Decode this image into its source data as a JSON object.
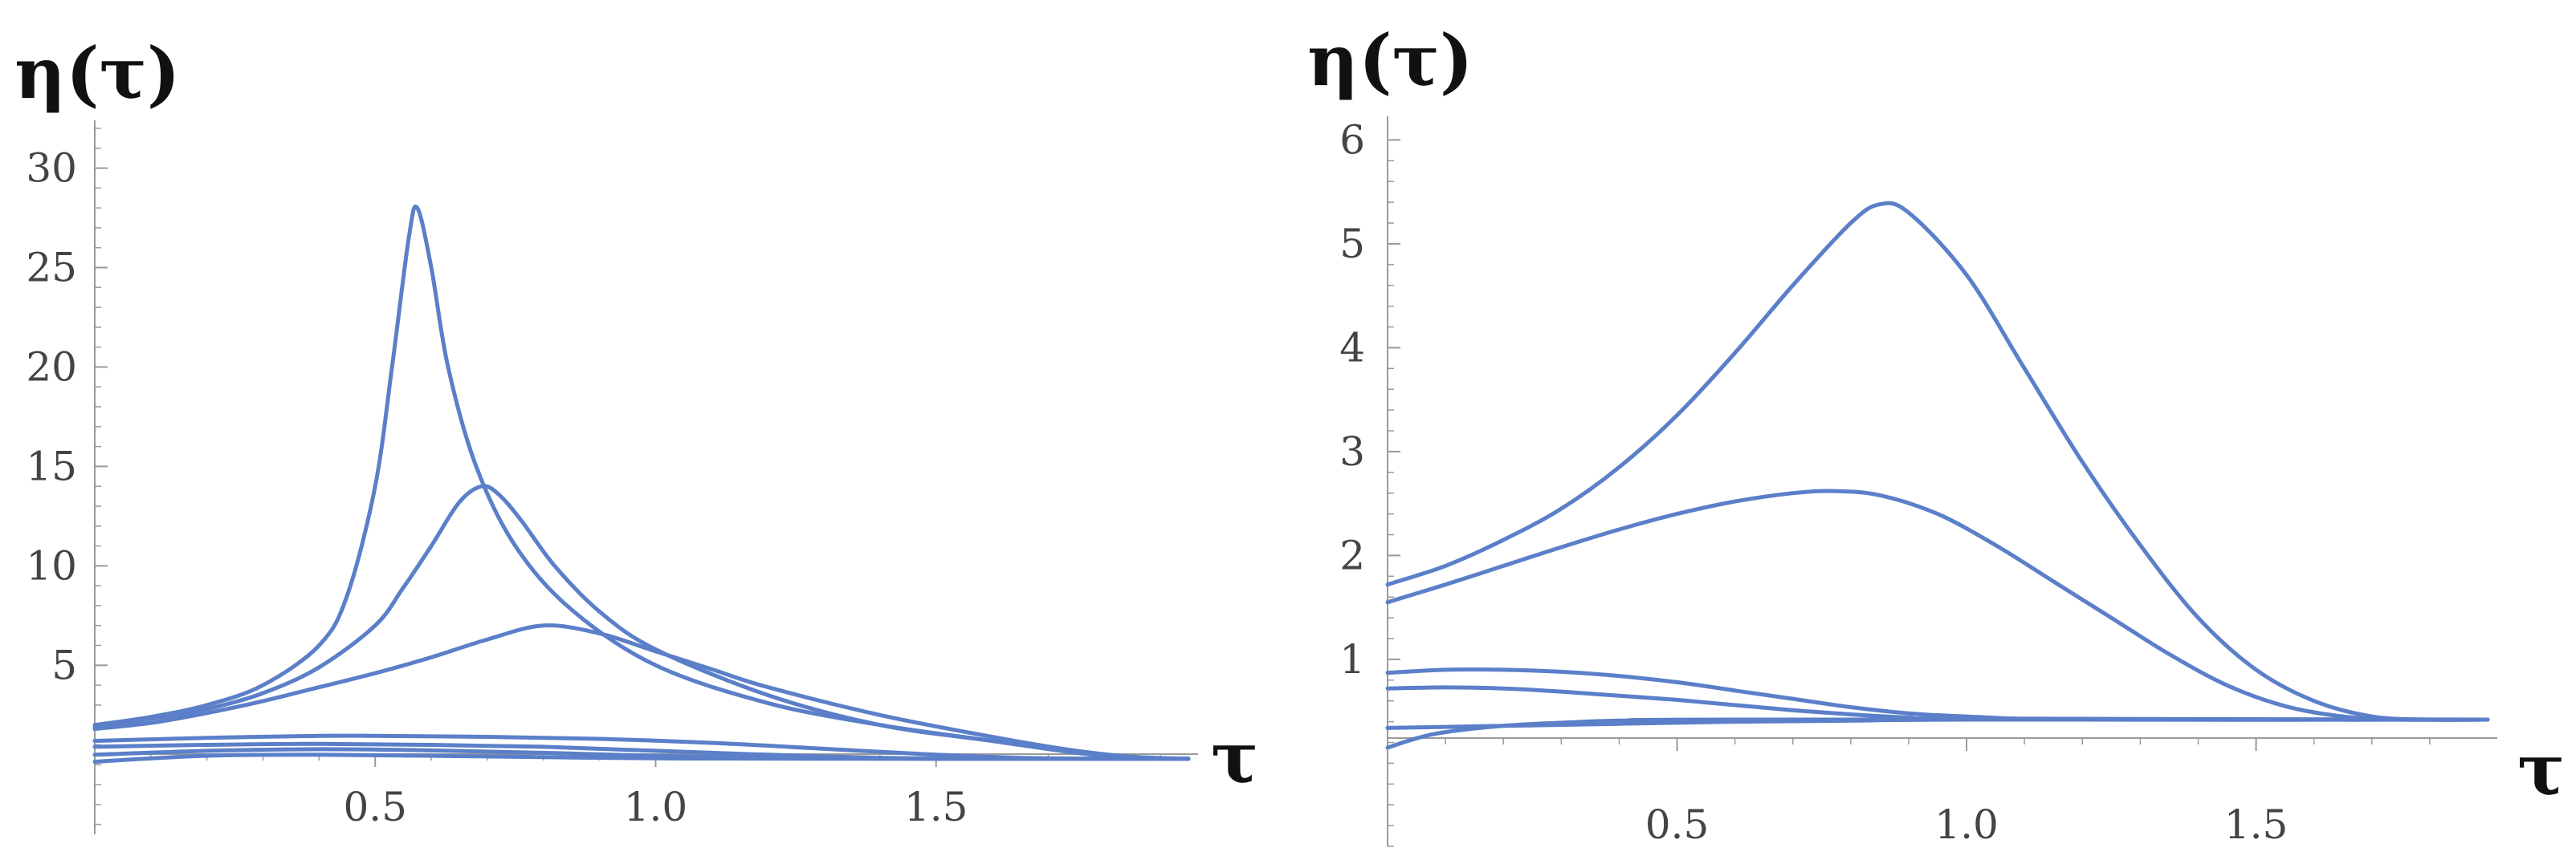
{
  "colors": {
    "line": "#5b7fc8",
    "axis": "#9a9a9a",
    "tick_text": "#444444"
  },
  "chart_data": [
    {
      "type": "line",
      "title": "",
      "xlabel": "τ",
      "ylabel": "η(τ)",
      "xlim": [
        0,
        1.95
      ],
      "ylim": [
        -3.5,
        32
      ],
      "grid": false,
      "xticks": [
        {
          "v": 0.5,
          "label": "0.5"
        },
        {
          "v": 1.0,
          "label": "1.0"
        },
        {
          "v": 1.5,
          "label": "1.5"
        }
      ],
      "yticks": [
        {
          "v": 5,
          "label": "5"
        },
        {
          "v": 10,
          "label": "10"
        },
        {
          "v": 15,
          "label": "15"
        },
        {
          "v": 20,
          "label": "20"
        },
        {
          "v": 25,
          "label": "25"
        },
        {
          "v": 30,
          "label": "30"
        }
      ],
      "series": [
        {
          "points": [
            [
              0,
              2.0
            ],
            [
              0.1,
              2.4
            ],
            [
              0.2,
              3.0
            ],
            [
              0.3,
              4.0
            ],
            [
              0.4,
              6.0
            ],
            [
              0.45,
              8.5
            ],
            [
              0.5,
              14.0
            ],
            [
              0.53,
              20.0
            ],
            [
              0.56,
              26.5
            ],
            [
              0.575,
              28.0
            ],
            [
              0.6,
              25.0
            ],
            [
              0.63,
              20.0
            ],
            [
              0.68,
              15.0
            ],
            [
              0.75,
              11.0
            ],
            [
              0.85,
              7.8
            ],
            [
              1.0,
              5.0
            ],
            [
              1.2,
              3.1
            ],
            [
              1.4,
              2.0
            ],
            [
              1.6,
              1.2
            ],
            [
              1.75,
              0.6
            ],
            [
              1.85,
              0.35
            ],
            [
              1.95,
              0.3
            ]
          ]
        },
        {
          "points": [
            [
              0,
              1.9
            ],
            [
              0.1,
              2.3
            ],
            [
              0.2,
              2.8
            ],
            [
              0.3,
              3.6
            ],
            [
              0.4,
              4.9
            ],
            [
              0.5,
              7.0
            ],
            [
              0.55,
              8.9
            ],
            [
              0.6,
              11.0
            ],
            [
              0.65,
              13.2
            ],
            [
              0.69,
              14.0
            ],
            [
              0.72,
              13.6
            ],
            [
              0.76,
              12.3
            ],
            [
              0.82,
              10.0
            ],
            [
              0.9,
              7.7
            ],
            [
              1.0,
              5.8
            ],
            [
              1.2,
              3.5
            ],
            [
              1.4,
              2.0
            ],
            [
              1.6,
              1.2
            ],
            [
              1.75,
              0.6
            ],
            [
              1.85,
              0.35
            ],
            [
              1.95,
              0.3
            ]
          ]
        },
        {
          "points": [
            [
              0,
              1.8
            ],
            [
              0.1,
              2.1
            ],
            [
              0.2,
              2.6
            ],
            [
              0.3,
              3.2
            ],
            [
              0.4,
              3.9
            ],
            [
              0.5,
              4.6
            ],
            [
              0.6,
              5.4
            ],
            [
              0.7,
              6.3
            ],
            [
              0.8,
              7.0
            ],
            [
              0.9,
              6.6
            ],
            [
              1.0,
              5.7
            ],
            [
              1.1,
              4.8
            ],
            [
              1.2,
              3.9
            ],
            [
              1.4,
              2.5
            ],
            [
              1.6,
              1.4
            ],
            [
              1.75,
              0.7
            ],
            [
              1.85,
              0.4
            ],
            [
              1.95,
              0.3
            ]
          ]
        },
        {
          "points": [
            [
              0,
              1.2
            ],
            [
              0.2,
              1.35
            ],
            [
              0.4,
              1.45
            ],
            [
              0.5,
              1.45
            ],
            [
              0.7,
              1.4
            ],
            [
              0.9,
              1.3
            ],
            [
              1.1,
              1.1
            ],
            [
              1.3,
              0.8
            ],
            [
              1.5,
              0.5
            ],
            [
              1.65,
              0.35
            ],
            [
              1.8,
              0.3
            ],
            [
              1.95,
              0.3
            ]
          ]
        },
        {
          "points": [
            [
              0,
              0.9
            ],
            [
              0.2,
              1.0
            ],
            [
              0.4,
              1.05
            ],
            [
              0.6,
              1.0
            ],
            [
              0.8,
              0.9
            ],
            [
              1.0,
              0.7
            ],
            [
              1.2,
              0.5
            ],
            [
              1.4,
              0.35
            ],
            [
              1.6,
              0.3
            ],
            [
              1.95,
              0.3
            ]
          ]
        },
        {
          "points": [
            [
              0,
              0.5
            ],
            [
              0.2,
              0.7
            ],
            [
              0.4,
              0.78
            ],
            [
              0.6,
              0.72
            ],
            [
              0.8,
              0.6
            ],
            [
              1.0,
              0.45
            ],
            [
              1.2,
              0.35
            ],
            [
              1.5,
              0.3
            ],
            [
              1.95,
              0.3
            ]
          ]
        },
        {
          "points": [
            [
              0,
              0.15
            ],
            [
              0.2,
              0.45
            ],
            [
              0.4,
              0.5
            ],
            [
              0.6,
              0.45
            ],
            [
              0.8,
              0.38
            ],
            [
              1.0,
              0.32
            ],
            [
              1.3,
              0.3
            ],
            [
              1.95,
              0.3
            ]
          ]
        }
      ]
    },
    {
      "type": "line",
      "title": "",
      "xlabel": "τ",
      "ylabel": "η(τ)",
      "xlim": [
        0,
        1.9
      ],
      "ylim": [
        -0.8,
        6.15
      ],
      "grid": false,
      "xticks": [
        {
          "v": 0.5,
          "label": "0.5"
        },
        {
          "v": 1.0,
          "label": "1.0"
        },
        {
          "v": 1.5,
          "label": "1.5"
        }
      ],
      "yticks": [
        {
          "v": 1,
          "label": "1"
        },
        {
          "v": 2,
          "label": "2"
        },
        {
          "v": 3,
          "label": "3"
        },
        {
          "v": 4,
          "label": "4"
        },
        {
          "v": 5,
          "label": "5"
        },
        {
          "v": 6,
          "label": "6"
        }
      ],
      "series": [
        {
          "points": [
            [
              0,
              1.72
            ],
            [
              0.1,
              1.9
            ],
            [
              0.2,
              2.15
            ],
            [
              0.3,
              2.45
            ],
            [
              0.4,
              2.85
            ],
            [
              0.5,
              3.35
            ],
            [
              0.6,
              3.95
            ],
            [
              0.7,
              4.6
            ],
            [
              0.8,
              5.2
            ],
            [
              0.85,
              5.38
            ],
            [
              0.9,
              5.3
            ],
            [
              1.0,
              4.7
            ],
            [
              1.1,
              3.8
            ],
            [
              1.2,
              2.9
            ],
            [
              1.3,
              2.1
            ],
            [
              1.4,
              1.4
            ],
            [
              1.5,
              0.9
            ],
            [
              1.6,
              0.6
            ],
            [
              1.7,
              0.45
            ],
            [
              1.8,
              0.42
            ],
            [
              1.9,
              0.42
            ]
          ]
        },
        {
          "points": [
            [
              0,
              1.55
            ],
            [
              0.1,
              1.72
            ],
            [
              0.2,
              1.9
            ],
            [
              0.3,
              2.08
            ],
            [
              0.4,
              2.25
            ],
            [
              0.5,
              2.4
            ],
            [
              0.6,
              2.52
            ],
            [
              0.7,
              2.6
            ],
            [
              0.77,
              2.62
            ],
            [
              0.85,
              2.58
            ],
            [
              0.95,
              2.4
            ],
            [
              1.05,
              2.1
            ],
            [
              1.15,
              1.75
            ],
            [
              1.25,
              1.4
            ],
            [
              1.35,
              1.05
            ],
            [
              1.45,
              0.75
            ],
            [
              1.55,
              0.55
            ],
            [
              1.65,
              0.45
            ],
            [
              1.75,
              0.42
            ],
            [
              1.9,
              0.42
            ]
          ]
        },
        {
          "points": [
            [
              0,
              0.87
            ],
            [
              0.1,
              0.9
            ],
            [
              0.2,
              0.9
            ],
            [
              0.3,
              0.88
            ],
            [
              0.4,
              0.84
            ],
            [
              0.5,
              0.78
            ],
            [
              0.6,
              0.7
            ],
            [
              0.7,
              0.62
            ],
            [
              0.8,
              0.54
            ],
            [
              0.9,
              0.48
            ],
            [
              1.0,
              0.45
            ],
            [
              1.2,
              0.42
            ],
            [
              1.9,
              0.42
            ]
          ]
        },
        {
          "points": [
            [
              0,
              0.72
            ],
            [
              0.1,
              0.73
            ],
            [
              0.2,
              0.72
            ],
            [
              0.3,
              0.69
            ],
            [
              0.4,
              0.65
            ],
            [
              0.5,
              0.61
            ],
            [
              0.6,
              0.56
            ],
            [
              0.7,
              0.51
            ],
            [
              0.8,
              0.47
            ],
            [
              0.9,
              0.44
            ],
            [
              1.0,
              0.43
            ],
            [
              1.9,
              0.42
            ]
          ]
        },
        {
          "points": [
            [
              0,
              0.34
            ],
            [
              0.2,
              0.36
            ],
            [
              0.4,
              0.38
            ],
            [
              0.6,
              0.4
            ],
            [
              0.8,
              0.41
            ],
            [
              1.0,
              0.42
            ],
            [
              1.9,
              0.42
            ]
          ]
        },
        {
          "points": [
            [
              0,
              0.15
            ],
            [
              0.05,
              0.24
            ],
            [
              0.1,
              0.3
            ],
            [
              0.2,
              0.36
            ],
            [
              0.3,
              0.39
            ],
            [
              0.4,
              0.41
            ],
            [
              0.6,
              0.42
            ],
            [
              1.9,
              0.42
            ]
          ]
        }
      ]
    }
  ]
}
